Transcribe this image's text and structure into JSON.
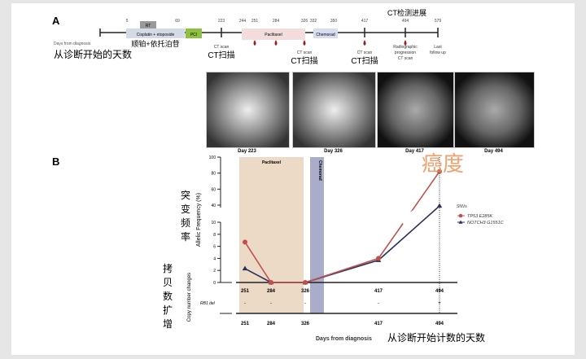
{
  "panel_a": {
    "label": "A",
    "axis_label": "Days from diagnosis",
    "axis_label_cn": "从诊断开始的天数",
    "ticks": [
      "5",
      "69",
      "223",
      "244",
      "251",
      "284",
      "326",
      "332",
      "350",
      "417",
      "494",
      "579"
    ],
    "treatments": {
      "rt": "RT",
      "cisplatin": "Cisplatin + etoposide",
      "cisplatin_cn": "顺铂+依托泊苷",
      "pci": "PCI",
      "paclitaxel": "Paclitaxel",
      "chemorad": "Chemorad"
    },
    "events": {
      "ct223": "CT scan",
      "ct223_cn": "CT扫描",
      "ct326": "CT scan",
      "ct326_cn": "CT扫描",
      "ct417": "CT scan",
      "ct417_cn": "CT扫描",
      "prog1": "Radiographic",
      "prog2": "progression",
      "prog3": "CT scan",
      "prog_cn": "CT检测进展",
      "last1": "Last",
      "last2": "follow up"
    },
    "images": [
      "Day 223",
      "Day 326",
      "Day 417",
      "Day 494"
    ]
  },
  "panel_b": {
    "label": "B",
    "watermark": "癌度",
    "ylabel_cn": "突变频率",
    "cnv_label_cn": "拷贝数扩增",
    "xlabel_cn": "从诊断开始计数的天数"
  },
  "chart_data": {
    "type": "line",
    "x": [
      251,
      284,
      326,
      417,
      494
    ],
    "series": [
      {
        "name": "TP53 E285K",
        "values": [
          6.7,
          0,
          0,
          4,
          82
        ],
        "color": "#c0504d",
        "marker": "circle"
      },
      {
        "name": "NOTCH3 G1551C",
        "values": [
          2.3,
          0,
          0,
          3.7,
          39
        ],
        "color": "#2b2f5e",
        "marker": "triangle"
      }
    ],
    "legend_title": "SNVs",
    "legend_position": "right",
    "ylabel": "Allelic Frequency (%)",
    "yticks_lower": [
      "0",
      "2",
      "4",
      "6",
      "8",
      "10"
    ],
    "yticks_upper": [
      "40",
      "60",
      "80",
      "100"
    ],
    "ylim": [
      0,
      100
    ],
    "y_break": [
      10,
      40
    ],
    "xticks": [
      "251",
      "284",
      "326",
      "417",
      "494"
    ],
    "xlabel": "Days from diagnosis",
    "shaded": [
      {
        "label": "Paclitaxel",
        "from": 244,
        "to": 326,
        "color": "#ecd9c6"
      },
      {
        "label": "Chemorad",
        "from": 332,
        "to": 350,
        "color": "#a9adc9"
      }
    ],
    "cnv": {
      "title": "Copy number changes",
      "row_label": "RB1 del",
      "values": [
        "-",
        "-",
        "-",
        "-",
        "+"
      ]
    }
  }
}
